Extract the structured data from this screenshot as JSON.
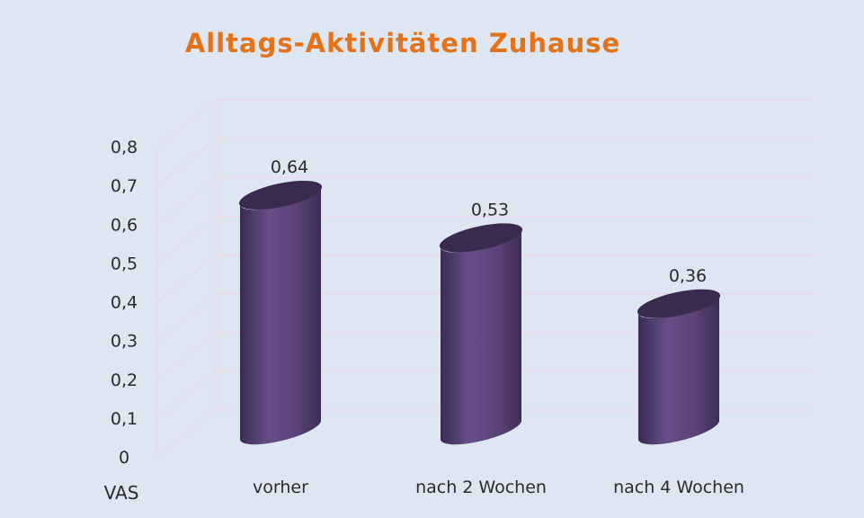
{
  "chart_data": {
    "type": "bar",
    "title": "Alltags-Aktivitäten Zuhause",
    "ylabel": "VAS",
    "categories": [
      "vorher",
      "nach 2 Wochen",
      "nach 4 Wochen"
    ],
    "values": [
      0.64,
      0.53,
      0.36
    ],
    "value_labels": [
      "0,64",
      "0,53",
      "0,36"
    ],
    "y_ticks": [
      0,
      0.1,
      0.2,
      0.3,
      0.4,
      0.5,
      0.6,
      0.7,
      0.8
    ],
    "y_tick_labels": [
      "0",
      "0,1",
      "0,2",
      "0,3",
      "0,4",
      "0,5",
      "0,6",
      "0,7",
      "0,8"
    ],
    "ylim": [
      0,
      0.8
    ],
    "grid": true,
    "legend": "none",
    "colors": {
      "bar": "#5b4478",
      "title": "#e3731a",
      "grid": "#eed8e6",
      "text": "#2b2b2b",
      "background": "#dde6f1"
    }
  }
}
